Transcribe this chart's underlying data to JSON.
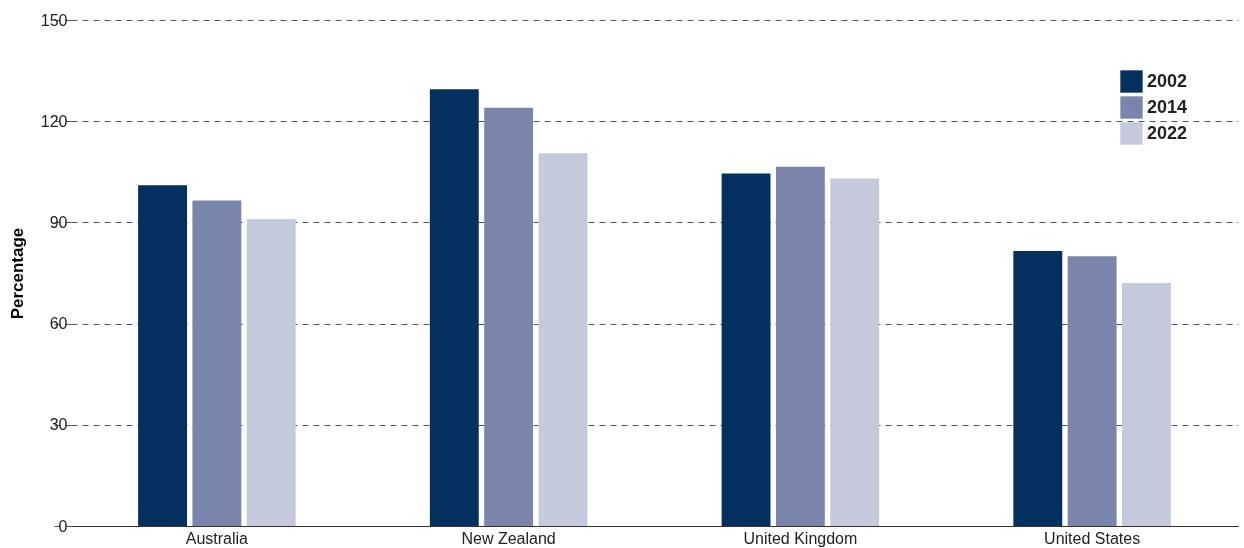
{
  "chart_data": {
    "type": "bar",
    "ylabel": "Percentage",
    "categories": [
      "Australia",
      "New Zealand",
      "United Kingdom",
      "United States"
    ],
    "series": [
      {
        "name": "2002",
        "color": "#04305f",
        "values": [
          101,
          129.5,
          104.5,
          81.5
        ]
      },
      {
        "name": "2014",
        "color": "#7985ab",
        "values": [
          96.5,
          124,
          106.5,
          80
        ]
      },
      {
        "name": "2022",
        "color": "#c5c9dc",
        "values": [
          91,
          110.5,
          103,
          72
        ]
      }
    ],
    "ylim": [
      0,
      150
    ],
    "yticks": [
      0,
      30,
      60,
      90,
      120,
      150
    ],
    "grid": "y",
    "legend": "top right"
  }
}
